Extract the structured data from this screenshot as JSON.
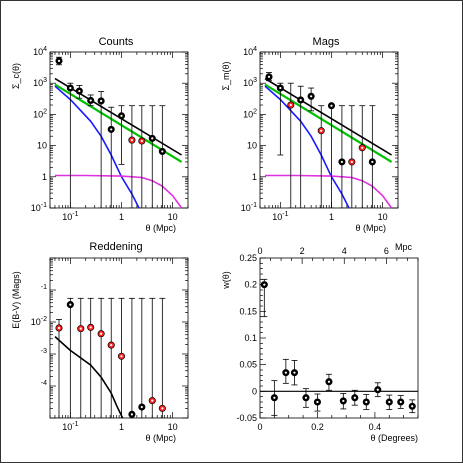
{
  "colors": {
    "black": "#000000",
    "red": "#ff2020",
    "blue": "#1a1aff",
    "green": "#00c000",
    "magenta": "#e030e0",
    "frame": "#000000"
  },
  "chart_data": [
    {
      "type": "scatter",
      "title": "Counts",
      "xlabel": "θ (Mpc)",
      "ylabel": "Σ_c(θ)",
      "xscale": "log",
      "yscale": "log",
      "xlim": [
        0.04,
        20
      ],
      "ylim": [
        0.1,
        10000
      ],
      "x_ticklabels": [
        {
          "value": 0.1,
          "base": "10",
          "exp": "-1"
        },
        {
          "value": 1,
          "base": "1",
          "exp": ""
        },
        {
          "value": 10,
          "base": "10",
          "exp": ""
        }
      ],
      "y_ticklabels": [
        {
          "value": 10000,
          "base": "10",
          "exp": "4"
        },
        {
          "value": 1000,
          "base": "10",
          "exp": "3"
        },
        {
          "value": 100,
          "base": "10",
          "exp": "2"
        },
        {
          "value": 10,
          "base": "10",
          "exp": ""
        },
        {
          "value": 1,
          "base": "1",
          "exp": ""
        },
        {
          "value": 0.1,
          "base": "10",
          "exp": "-1"
        }
      ],
      "points": [
        {
          "x": 0.06,
          "y": 5200,
          "ylo": 3900,
          "yhi": 6800,
          "color": "black"
        },
        {
          "x": 0.1,
          "y": 700,
          "ylo": 0.1,
          "yhi": 1000,
          "color": "black"
        },
        {
          "x": 0.15,
          "y": 560,
          "ylo": 330,
          "yhi": 850,
          "color": "black"
        },
        {
          "x": 0.25,
          "y": 280,
          "ylo": 190,
          "yhi": 420,
          "color": "black"
        },
        {
          "x": 0.4,
          "y": 270,
          "ylo": 0.1,
          "yhi": 540,
          "color": "black"
        },
        {
          "x": 0.63,
          "y": 33,
          "ylo": 0.1,
          "yhi": 170,
          "color": "black"
        },
        {
          "x": 1,
          "y": 90,
          "ylo": 2.5,
          "yhi": 190,
          "color": "black"
        },
        {
          "x": 1.6,
          "y": 15,
          "ylo": 0.1,
          "yhi": 190,
          "color": "red"
        },
        {
          "x": 2.5,
          "y": 14,
          "ylo": 0.1,
          "yhi": 190,
          "color": "red"
        },
        {
          "x": 4,
          "y": 17,
          "ylo": 0.1,
          "yhi": 190,
          "color": "black"
        },
        {
          "x": 6.3,
          "y": 6.5,
          "ylo": 0.1,
          "yhi": 190,
          "color": "black"
        }
      ],
      "series": [
        {
          "color": "black",
          "x": [
            0.05,
            15
          ],
          "y": [
            1400,
            5
          ]
        },
        {
          "color": "green",
          "x": [
            0.05,
            15
          ],
          "y": [
            900,
            3
          ]
        },
        {
          "color": "blue",
          "x": [
            0.05,
            0.1,
            0.25,
            0.4,
            0.63,
            1,
            1.6,
            2.2
          ],
          "y": [
            800,
            300,
            60,
            20,
            5,
            1,
            0.28,
            0.1
          ]
        },
        {
          "color": "magenta",
          "x": [
            0.05,
            0.2,
            1,
            2.5,
            4,
            6.3,
            10,
            15
          ],
          "y": [
            1.1,
            1.1,
            1.05,
            0.95,
            0.75,
            0.5,
            0.25,
            0.1
          ]
        }
      ]
    },
    {
      "type": "scatter",
      "title": "Mags",
      "xlabel": "θ (Mpc)",
      "ylabel": "Σ_m(θ)",
      "xscale": "log",
      "yscale": "log",
      "xlim": [
        0.04,
        20
      ],
      "ylim": [
        0.1,
        10000
      ],
      "x_ticklabels": [
        {
          "value": 0.1,
          "base": "10",
          "exp": "-1"
        },
        {
          "value": 1,
          "base": "1",
          "exp": ""
        },
        {
          "value": 10,
          "base": "10",
          "exp": ""
        }
      ],
      "y_ticklabels": [
        {
          "value": 10000,
          "base": "10",
          "exp": "4"
        },
        {
          "value": 1000,
          "base": "10",
          "exp": "3"
        },
        {
          "value": 100,
          "base": "10",
          "exp": "2"
        },
        {
          "value": 10,
          "base": "10",
          "exp": ""
        },
        {
          "value": 1,
          "base": "1",
          "exp": ""
        },
        {
          "value": 0.1,
          "base": "10",
          "exp": "-1"
        }
      ],
      "points": [
        {
          "x": 0.06,
          "y": 1600,
          "ylo": 1200,
          "yhi": 2200,
          "color": "black"
        },
        {
          "x": 0.1,
          "y": 700,
          "ylo": 5,
          "yhi": 1000,
          "color": "black"
        },
        {
          "x": 0.16,
          "y": 200,
          "ylo": 0.1,
          "yhi": 1000,
          "color": "red"
        },
        {
          "x": 0.25,
          "y": 290,
          "ylo": 0.1,
          "yhi": 800,
          "color": "black"
        },
        {
          "x": 0.4,
          "y": 380,
          "ylo": 130,
          "yhi": 700,
          "color": "black"
        },
        {
          "x": 0.63,
          "y": 30,
          "ylo": 0.1,
          "yhi": 190,
          "color": "red"
        },
        {
          "x": 1,
          "y": 190,
          "ylo": 0.1,
          "yhi": 190,
          "color": "black"
        },
        {
          "x": 1.6,
          "y": 3,
          "ylo": 0.1,
          "yhi": 190,
          "color": "black"
        },
        {
          "x": 2.5,
          "y": 3,
          "ylo": 0.1,
          "yhi": 190,
          "color": "red"
        },
        {
          "x": 4,
          "y": 8.5,
          "ylo": 0.1,
          "yhi": 190,
          "color": "red"
        },
        {
          "x": 6.3,
          "y": 3,
          "ylo": 0.1,
          "yhi": 190,
          "color": "black"
        }
      ],
      "series": [
        {
          "color": "black",
          "x": [
            0.05,
            15
          ],
          "y": [
            1400,
            5
          ]
        },
        {
          "color": "green",
          "x": [
            0.05,
            15
          ],
          "y": [
            900,
            3
          ]
        },
        {
          "color": "blue",
          "x": [
            0.05,
            0.1,
            0.25,
            0.4,
            0.63,
            1,
            1.6,
            2.2
          ],
          "y": [
            800,
            300,
            60,
            20,
            5,
            1,
            0.28,
            0.1
          ]
        },
        {
          "color": "magenta",
          "x": [
            0.05,
            0.2,
            1,
            2.5,
            4,
            6.3,
            10,
            15
          ],
          "y": [
            1.1,
            1.1,
            1.05,
            0.95,
            0.75,
            0.5,
            0.25,
            0.1
          ]
        }
      ]
    },
    {
      "type": "scatter",
      "title": "Reddening",
      "xlabel": "θ (Mpc)",
      "ylabel": "E(B-V) (Mags)",
      "xscale": "log",
      "yscale": "log",
      "xlim": [
        0.04,
        20
      ],
      "ylim": [
        1e-05,
        1
      ],
      "x_ticklabels": [
        {
          "value": 0.1,
          "base": "10",
          "exp": "-1"
        },
        {
          "value": 1,
          "base": "1",
          "exp": ""
        },
        {
          "value": 10,
          "base": "10",
          "exp": ""
        }
      ],
      "y_ticklabels": [
        {
          "value": 0.1,
          "base": "",
          "exp": "-1"
        },
        {
          "value": 0.01,
          "base": "10",
          "exp": "-2"
        },
        {
          "value": 0.001,
          "base": "",
          "exp": "-3"
        },
        {
          "value": 0.0001,
          "base": "",
          "exp": "-4"
        }
      ],
      "points": [
        {
          "x": 0.06,
          "y": 0.0065,
          "ylo": 1e-05,
          "yhi": 0.012,
          "color": "red"
        },
        {
          "x": 0.1,
          "y": 0.035,
          "ylo": 1e-05,
          "yhi": 0.055,
          "color": "black"
        },
        {
          "x": 0.16,
          "y": 0.0062,
          "ylo": 1e-05,
          "yhi": 0.055,
          "color": "red"
        },
        {
          "x": 0.25,
          "y": 0.0068,
          "ylo": 1e-05,
          "yhi": 0.055,
          "color": "red"
        },
        {
          "x": 0.4,
          "y": 0.0043,
          "ylo": 1e-05,
          "yhi": 0.055,
          "color": "red"
        },
        {
          "x": 0.63,
          "y": 0.0019,
          "ylo": 1e-05,
          "yhi": 0.055,
          "color": "red"
        },
        {
          "x": 1,
          "y": 0.00085,
          "ylo": 1e-05,
          "yhi": 0.055,
          "color": "red"
        },
        {
          "x": 1.6,
          "y": 1.3e-05,
          "ylo": 1e-05,
          "yhi": 0.055,
          "color": "black"
        },
        {
          "x": 2.5,
          "y": 2.2e-05,
          "ylo": 1e-05,
          "yhi": 0.055,
          "color": "black"
        },
        {
          "x": 4,
          "y": 3.5e-05,
          "ylo": 1e-05,
          "yhi": 0.055,
          "color": "red"
        },
        {
          "x": 6.3,
          "y": 2e-05,
          "ylo": 1e-05,
          "yhi": 0.055,
          "color": "red"
        }
      ],
      "series": [
        {
          "color": "black",
          "x": [
            0.05,
            0.1,
            0.25,
            0.4,
            0.63,
            0.8,
            1.05
          ],
          "y": [
            0.0035,
            0.0013,
            0.00045,
            0.00019,
            6e-05,
            2.5e-05,
            1e-05
          ]
        }
      ]
    },
    {
      "type": "scatter",
      "title": "",
      "xlabel": "θ (Degrees)",
      "ylabel": "w(θ)",
      "top_axis_label": "Mpc",
      "xscale": "linear",
      "yscale": "linear",
      "xlim": [
        0,
        0.55
      ],
      "ylim": [
        -0.05,
        0.25
      ],
      "x_ticklabels": [
        {
          "value": 0,
          "base": "0",
          "exp": ""
        },
        {
          "value": 0.2,
          "base": "0.2",
          "exp": ""
        },
        {
          "value": 0.4,
          "base": "0.4",
          "exp": ""
        }
      ],
      "top_ticklabels": [
        {
          "value": 0,
          "label": "0"
        },
        {
          "value": 2,
          "label": "2"
        },
        {
          "value": 4,
          "label": "4"
        },
        {
          "value": 6,
          "label": "6"
        }
      ],
      "top_range": [
        0,
        7.5
      ],
      "y_ticklabels": [
        {
          "value": 0.25,
          "base": "0.25",
          "exp": ""
        },
        {
          "value": 0.2,
          "base": "0.2",
          "exp": ""
        },
        {
          "value": 0.15,
          "base": "0.15",
          "exp": ""
        },
        {
          "value": 0.1,
          "base": "0.1",
          "exp": ""
        },
        {
          "value": 0.05,
          "base": "0.05",
          "exp": ""
        },
        {
          "value": 0,
          "base": "0",
          "exp": ""
        },
        {
          "value": -0.05,
          "base": "-0.05",
          "exp": ""
        }
      ],
      "points": [
        {
          "x": 0.015,
          "y": 0.2,
          "ylo": 0.14,
          "yhi": 0.21,
          "color": "black"
        },
        {
          "x": 0.05,
          "y": -0.012,
          "ylo": -0.045,
          "yhi": 0.02,
          "color": "black"
        },
        {
          "x": 0.09,
          "y": 0.035,
          "ylo": 0.015,
          "yhi": 0.06,
          "color": "black"
        },
        {
          "x": 0.12,
          "y": 0.035,
          "ylo": 0.012,
          "yhi": 0.058,
          "color": "black"
        },
        {
          "x": 0.16,
          "y": -0.012,
          "ylo": -0.03,
          "yhi": 0.005,
          "color": "black"
        },
        {
          "x": 0.2,
          "y": -0.02,
          "ylo": -0.037,
          "yhi": -0.005,
          "color": "black"
        },
        {
          "x": 0.24,
          "y": 0.018,
          "ylo": 0.002,
          "yhi": 0.032,
          "color": "black"
        },
        {
          "x": 0.29,
          "y": -0.018,
          "ylo": -0.033,
          "yhi": -0.004,
          "color": "black"
        },
        {
          "x": 0.33,
          "y": -0.012,
          "ylo": -0.026,
          "yhi": 0.002,
          "color": "black"
        },
        {
          "x": 0.37,
          "y": -0.02,
          "ylo": -0.034,
          "yhi": -0.006,
          "color": "black"
        },
        {
          "x": 0.41,
          "y": 0.003,
          "ylo": -0.01,
          "yhi": 0.016,
          "color": "black"
        },
        {
          "x": 0.45,
          "y": -0.02,
          "ylo": -0.034,
          "yhi": -0.007,
          "color": "black"
        },
        {
          "x": 0.49,
          "y": -0.02,
          "ylo": -0.032,
          "yhi": -0.008,
          "color": "black"
        },
        {
          "x": 0.53,
          "y": -0.028,
          "ylo": -0.04,
          "yhi": -0.016,
          "color": "black"
        }
      ],
      "reference_line": {
        "y": 0,
        "color": "black"
      }
    }
  ]
}
